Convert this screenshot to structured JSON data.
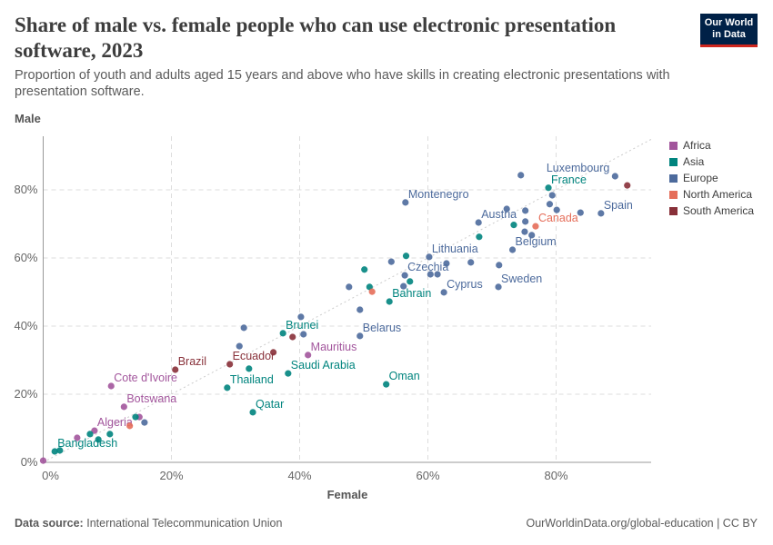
{
  "title": "Share of male vs. female people who can use electronic presentation software, 2023",
  "subtitle": "Proportion of youth and adults aged 15 years and above who have skills in creating electronic presentations with presentation software.",
  "logo": "Our World in Data",
  "footer": {
    "source_label": "Data source:",
    "source": "International Telecommunication Union",
    "link": "OurWorldinData.org/global-education | CC BY"
  },
  "chart_data": {
    "type": "scatter",
    "xlabel": "Female",
    "ylabel": "Male",
    "xlim": [
      0,
      95
    ],
    "ylim": [
      0,
      96
    ],
    "xticks": [
      "0%",
      "20%",
      "40%",
      "60%",
      "80%"
    ],
    "yticks": [
      "0%",
      "20%",
      "40%",
      "60%",
      "80%"
    ],
    "grid": true,
    "reference_line": "y = x (dotted)",
    "legend_placement": "right",
    "legend": [
      {
        "name": "Africa",
        "color": "#a2559c"
      },
      {
        "name": "Asia",
        "color": "#00847e"
      },
      {
        "name": "Europe",
        "color": "#4c6a9c"
      },
      {
        "name": "North America",
        "color": "#e56e5a"
      },
      {
        "name": "South America",
        "color": "#883039"
      }
    ],
    "points": [
      {
        "r": "Africa",
        "x": 0,
        "y": 0.5
      },
      {
        "r": "Africa",
        "x": 10.6,
        "y": 22.4,
        "label": "Cote d'Ivoire"
      },
      {
        "r": "Africa",
        "x": 12.6,
        "y": 16.3,
        "label": "Botswana"
      },
      {
        "r": "Africa",
        "x": 8.0,
        "y": 9.3,
        "label": "Algeria"
      },
      {
        "r": "Africa",
        "x": 5.3,
        "y": 7.2
      },
      {
        "r": "Africa",
        "x": 15.0,
        "y": 13.3
      },
      {
        "r": "Africa",
        "x": 41.3,
        "y": 31.5,
        "label": "Mauritius"
      },
      {
        "r": "Asia",
        "x": 1.8,
        "y": 3.2,
        "label": "Bangladesh"
      },
      {
        "r": "Asia",
        "x": 2.6,
        "y": 3.5
      },
      {
        "r": "Asia",
        "x": 7.3,
        "y": 8.3
      },
      {
        "r": "Asia",
        "x": 8.6,
        "y": 6.7
      },
      {
        "r": "Asia",
        "x": 10.4,
        "y": 8.3
      },
      {
        "r": "Asia",
        "x": 14.4,
        "y": 13.3
      },
      {
        "r": "Asia",
        "x": 28.7,
        "y": 21.9,
        "label": "Thailand"
      },
      {
        "r": "Asia",
        "x": 32.1,
        "y": 27.5
      },
      {
        "r": "Asia",
        "x": 32.7,
        "y": 14.7,
        "label": "Qatar"
      },
      {
        "r": "Asia",
        "x": 38.2,
        "y": 26.1,
        "label": "Saudi Arabia"
      },
      {
        "r": "Asia",
        "x": 37.4,
        "y": 37.9,
        "label": "Brunei"
      },
      {
        "r": "Asia",
        "x": 53.5,
        "y": 22.9,
        "label": "Oman"
      },
      {
        "r": "Asia",
        "x": 54.0,
        "y": 47.2,
        "label": "Bahrain"
      },
      {
        "r": "Asia",
        "x": 56.6,
        "y": 60.6
      },
      {
        "r": "Asia",
        "x": 50.1,
        "y": 56.6
      },
      {
        "r": "Asia",
        "x": 50.9,
        "y": 51.5
      },
      {
        "r": "Asia",
        "x": 57.2,
        "y": 53.1
      },
      {
        "r": "Asia",
        "x": 68.0,
        "y": 66.2
      },
      {
        "r": "Asia",
        "x": 73.4,
        "y": 69.7
      },
      {
        "r": "Asia",
        "x": 78.8,
        "y": 80.6,
        "label": "France"
      },
      {
        "r": "North America",
        "x": 13.5,
        "y": 10.7
      },
      {
        "r": "North America",
        "x": 51.3,
        "y": 50.1
      },
      {
        "r": "North America",
        "x": 76.8,
        "y": 69.3,
        "label": "Canada"
      },
      {
        "r": "South America",
        "x": 20.6,
        "y": 27.2,
        "label": "Brazil"
      },
      {
        "r": "South America",
        "x": 29.1,
        "y": 28.8,
        "label": "Ecuador"
      },
      {
        "r": "South America",
        "x": 35.9,
        "y": 32.3
      },
      {
        "r": "South America",
        "x": 38.9,
        "y": 36.8
      },
      {
        "r": "South America",
        "x": 91.1,
        "y": 81.3
      },
      {
        "r": "Europe",
        "x": 15.8,
        "y": 11.7
      },
      {
        "r": "Europe",
        "x": 31.3,
        "y": 39.5
      },
      {
        "r": "Europe",
        "x": 30.6,
        "y": 34.1
      },
      {
        "r": "Europe",
        "x": 40.2,
        "y": 42.7
      },
      {
        "r": "Europe",
        "x": 40.6,
        "y": 37.6
      },
      {
        "r": "Europe",
        "x": 47.7,
        "y": 51.5
      },
      {
        "r": "Europe",
        "x": 49.4,
        "y": 44.8
      },
      {
        "r": "Europe",
        "x": 49.4,
        "y": 37.1,
        "label": "Belarus"
      },
      {
        "r": "Europe",
        "x": 54.3,
        "y": 58.9
      },
      {
        "r": "Europe",
        "x": 56.4,
        "y": 54.9,
        "label": "Czechia"
      },
      {
        "r": "Europe",
        "x": 56.2,
        "y": 51.7
      },
      {
        "r": "Europe",
        "x": 56.5,
        "y": 76.3,
        "label": "Montenegro"
      },
      {
        "r": "Europe",
        "x": 60.2,
        "y": 60.3,
        "label": "Lithuania"
      },
      {
        "r": "Europe",
        "x": 60.4,
        "y": 55.2
      },
      {
        "r": "Europe",
        "x": 61.5,
        "y": 55.2
      },
      {
        "r": "Europe",
        "x": 62.9,
        "y": 58.4
      },
      {
        "r": "Europe",
        "x": 66.7,
        "y": 58.7
      },
      {
        "r": "Europe",
        "x": 62.5,
        "y": 49.9,
        "label": "Cyprus"
      },
      {
        "r": "Europe",
        "x": 67.9,
        "y": 70.4,
        "label": "Austria"
      },
      {
        "r": "Europe",
        "x": 72.3,
        "y": 74.4
      },
      {
        "r": "Europe",
        "x": 71.0,
        "y": 51.5,
        "label": "Sweden"
      },
      {
        "r": "Europe",
        "x": 73.2,
        "y": 62.4,
        "label": "Belgium"
      },
      {
        "r": "Europe",
        "x": 71.1,
        "y": 57.9
      },
      {
        "r": "Europe",
        "x": 75.1,
        "y": 67.7
      },
      {
        "r": "Europe",
        "x": 76.2,
        "y": 66.7
      },
      {
        "r": "Europe",
        "x": 75.2,
        "y": 73.9
      },
      {
        "r": "Europe",
        "x": 75.2,
        "y": 70.7
      },
      {
        "r": "Europe",
        "x": 74.5,
        "y": 84.3
      },
      {
        "r": "Europe",
        "x": 79.4,
        "y": 78.4
      },
      {
        "r": "Europe",
        "x": 79.0,
        "y": 75.8
      },
      {
        "r": "Europe",
        "x": 80.1,
        "y": 74.1
      },
      {
        "r": "Europe",
        "x": 83.8,
        "y": 73.3
      },
      {
        "r": "Europe",
        "x": 87.0,
        "y": 73.1,
        "label": "Spain"
      },
      {
        "r": "Europe",
        "x": 89.2,
        "y": 84.0,
        "label": "Luxembourg"
      }
    ]
  }
}
